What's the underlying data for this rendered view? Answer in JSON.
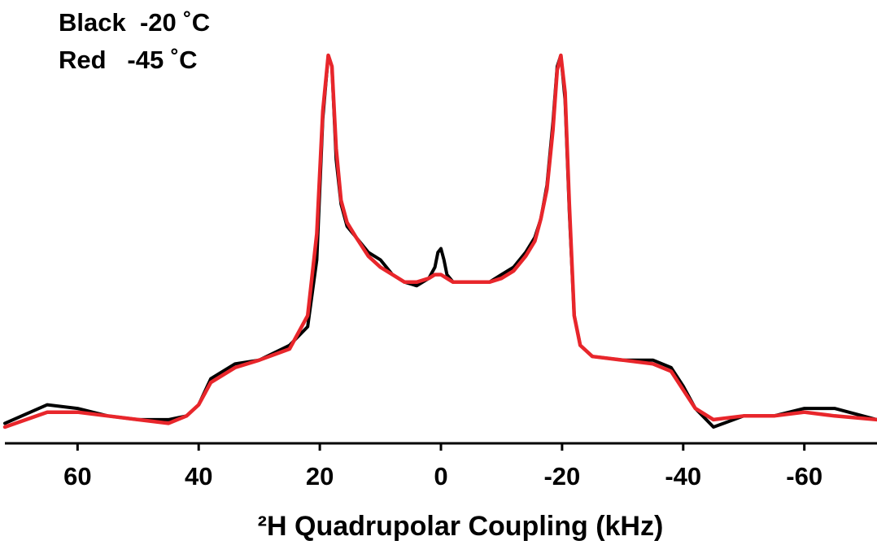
{
  "chart_data": {
    "type": "line",
    "title": "",
    "xlabel": "²H Quadrupolar Coupling (kHz)",
    "ylabel": "",
    "xlim": [
      72,
      -72
    ],
    "x_reversed": true,
    "ylim": [
      0,
      1.08
    ],
    "grid": false,
    "y_axis_visible": false,
    "xticks": [
      60,
      40,
      20,
      0,
      -20,
      -40,
      -60
    ],
    "xtick_labels": [
      "60",
      "40",
      "20",
      "0",
      "-20",
      "-40",
      "-60"
    ],
    "legend_entries": [
      {
        "label": "Black  -20 ˚C",
        "color": "#000000"
      },
      {
        "label": "Red   -45 ˚C",
        "color": "#e8262b"
      }
    ],
    "series": [
      {
        "color": "#000000",
        "x": [
          72,
          65,
          60,
          55,
          50,
          45,
          42,
          40,
          38,
          34,
          30,
          25,
          22,
          20.5,
          19.5,
          18.6,
          18,
          17.3,
          16.5,
          15.5,
          14,
          12,
          10,
          8,
          6,
          4,
          2,
          1,
          0.5,
          0,
          -0.5,
          -1,
          -2,
          -4,
          -6,
          -8,
          -10,
          -12,
          -14,
          -15.5,
          -16.5,
          -17.5,
          -18.5,
          -19.2,
          -19.8,
          -20.5,
          -21.2,
          -22,
          -23,
          -25,
          -30,
          -35,
          -38,
          -40,
          -42,
          -45,
          -50,
          -55,
          -60,
          -65,
          -72
        ],
        "y": [
          0.01,
          0.06,
          0.05,
          0.03,
          0.02,
          0.02,
          0.03,
          0.06,
          0.13,
          0.17,
          0.18,
          0.22,
          0.27,
          0.45,
          0.83,
          1.0,
          0.97,
          0.72,
          0.6,
          0.54,
          0.51,
          0.47,
          0.45,
          0.41,
          0.39,
          0.38,
          0.4,
          0.43,
          0.47,
          0.48,
          0.45,
          0.41,
          0.39,
          0.39,
          0.39,
          0.39,
          0.41,
          0.43,
          0.47,
          0.51,
          0.56,
          0.65,
          0.82,
          0.97,
          1.0,
          0.88,
          0.58,
          0.3,
          0.22,
          0.19,
          0.18,
          0.18,
          0.16,
          0.11,
          0.05,
          0.0,
          0.03,
          0.03,
          0.05,
          0.05,
          0.02
        ]
      },
      {
        "color": "#e8262b",
        "x": [
          72,
          65,
          60,
          55,
          50,
          45,
          42,
          40,
          38,
          34,
          30,
          25,
          22,
          20.5,
          19.5,
          18.6,
          18,
          17.3,
          16.5,
          15.5,
          14,
          12,
          10,
          8,
          6,
          4,
          2,
          1,
          0,
          -1,
          -2,
          -4,
          -6,
          -8,
          -10,
          -12,
          -14,
          -15.5,
          -16.5,
          -17.5,
          -18.5,
          -19.2,
          -19.8,
          -20.5,
          -21.2,
          -22,
          -23,
          -25,
          -30,
          -35,
          -38,
          -40,
          -42,
          -45,
          -50,
          -55,
          -60,
          -65,
          -72
        ],
        "y": [
          0.0,
          0.04,
          0.04,
          0.03,
          0.02,
          0.01,
          0.03,
          0.06,
          0.12,
          0.16,
          0.18,
          0.21,
          0.3,
          0.52,
          0.85,
          1.0,
          0.97,
          0.75,
          0.61,
          0.55,
          0.51,
          0.46,
          0.43,
          0.41,
          0.39,
          0.39,
          0.4,
          0.41,
          0.41,
          0.4,
          0.39,
          0.39,
          0.39,
          0.39,
          0.4,
          0.42,
          0.46,
          0.5,
          0.56,
          0.64,
          0.8,
          0.96,
          1.0,
          0.9,
          0.6,
          0.3,
          0.22,
          0.19,
          0.18,
          0.17,
          0.15,
          0.1,
          0.05,
          0.02,
          0.03,
          0.03,
          0.04,
          0.03,
          0.02
        ]
      }
    ]
  }
}
